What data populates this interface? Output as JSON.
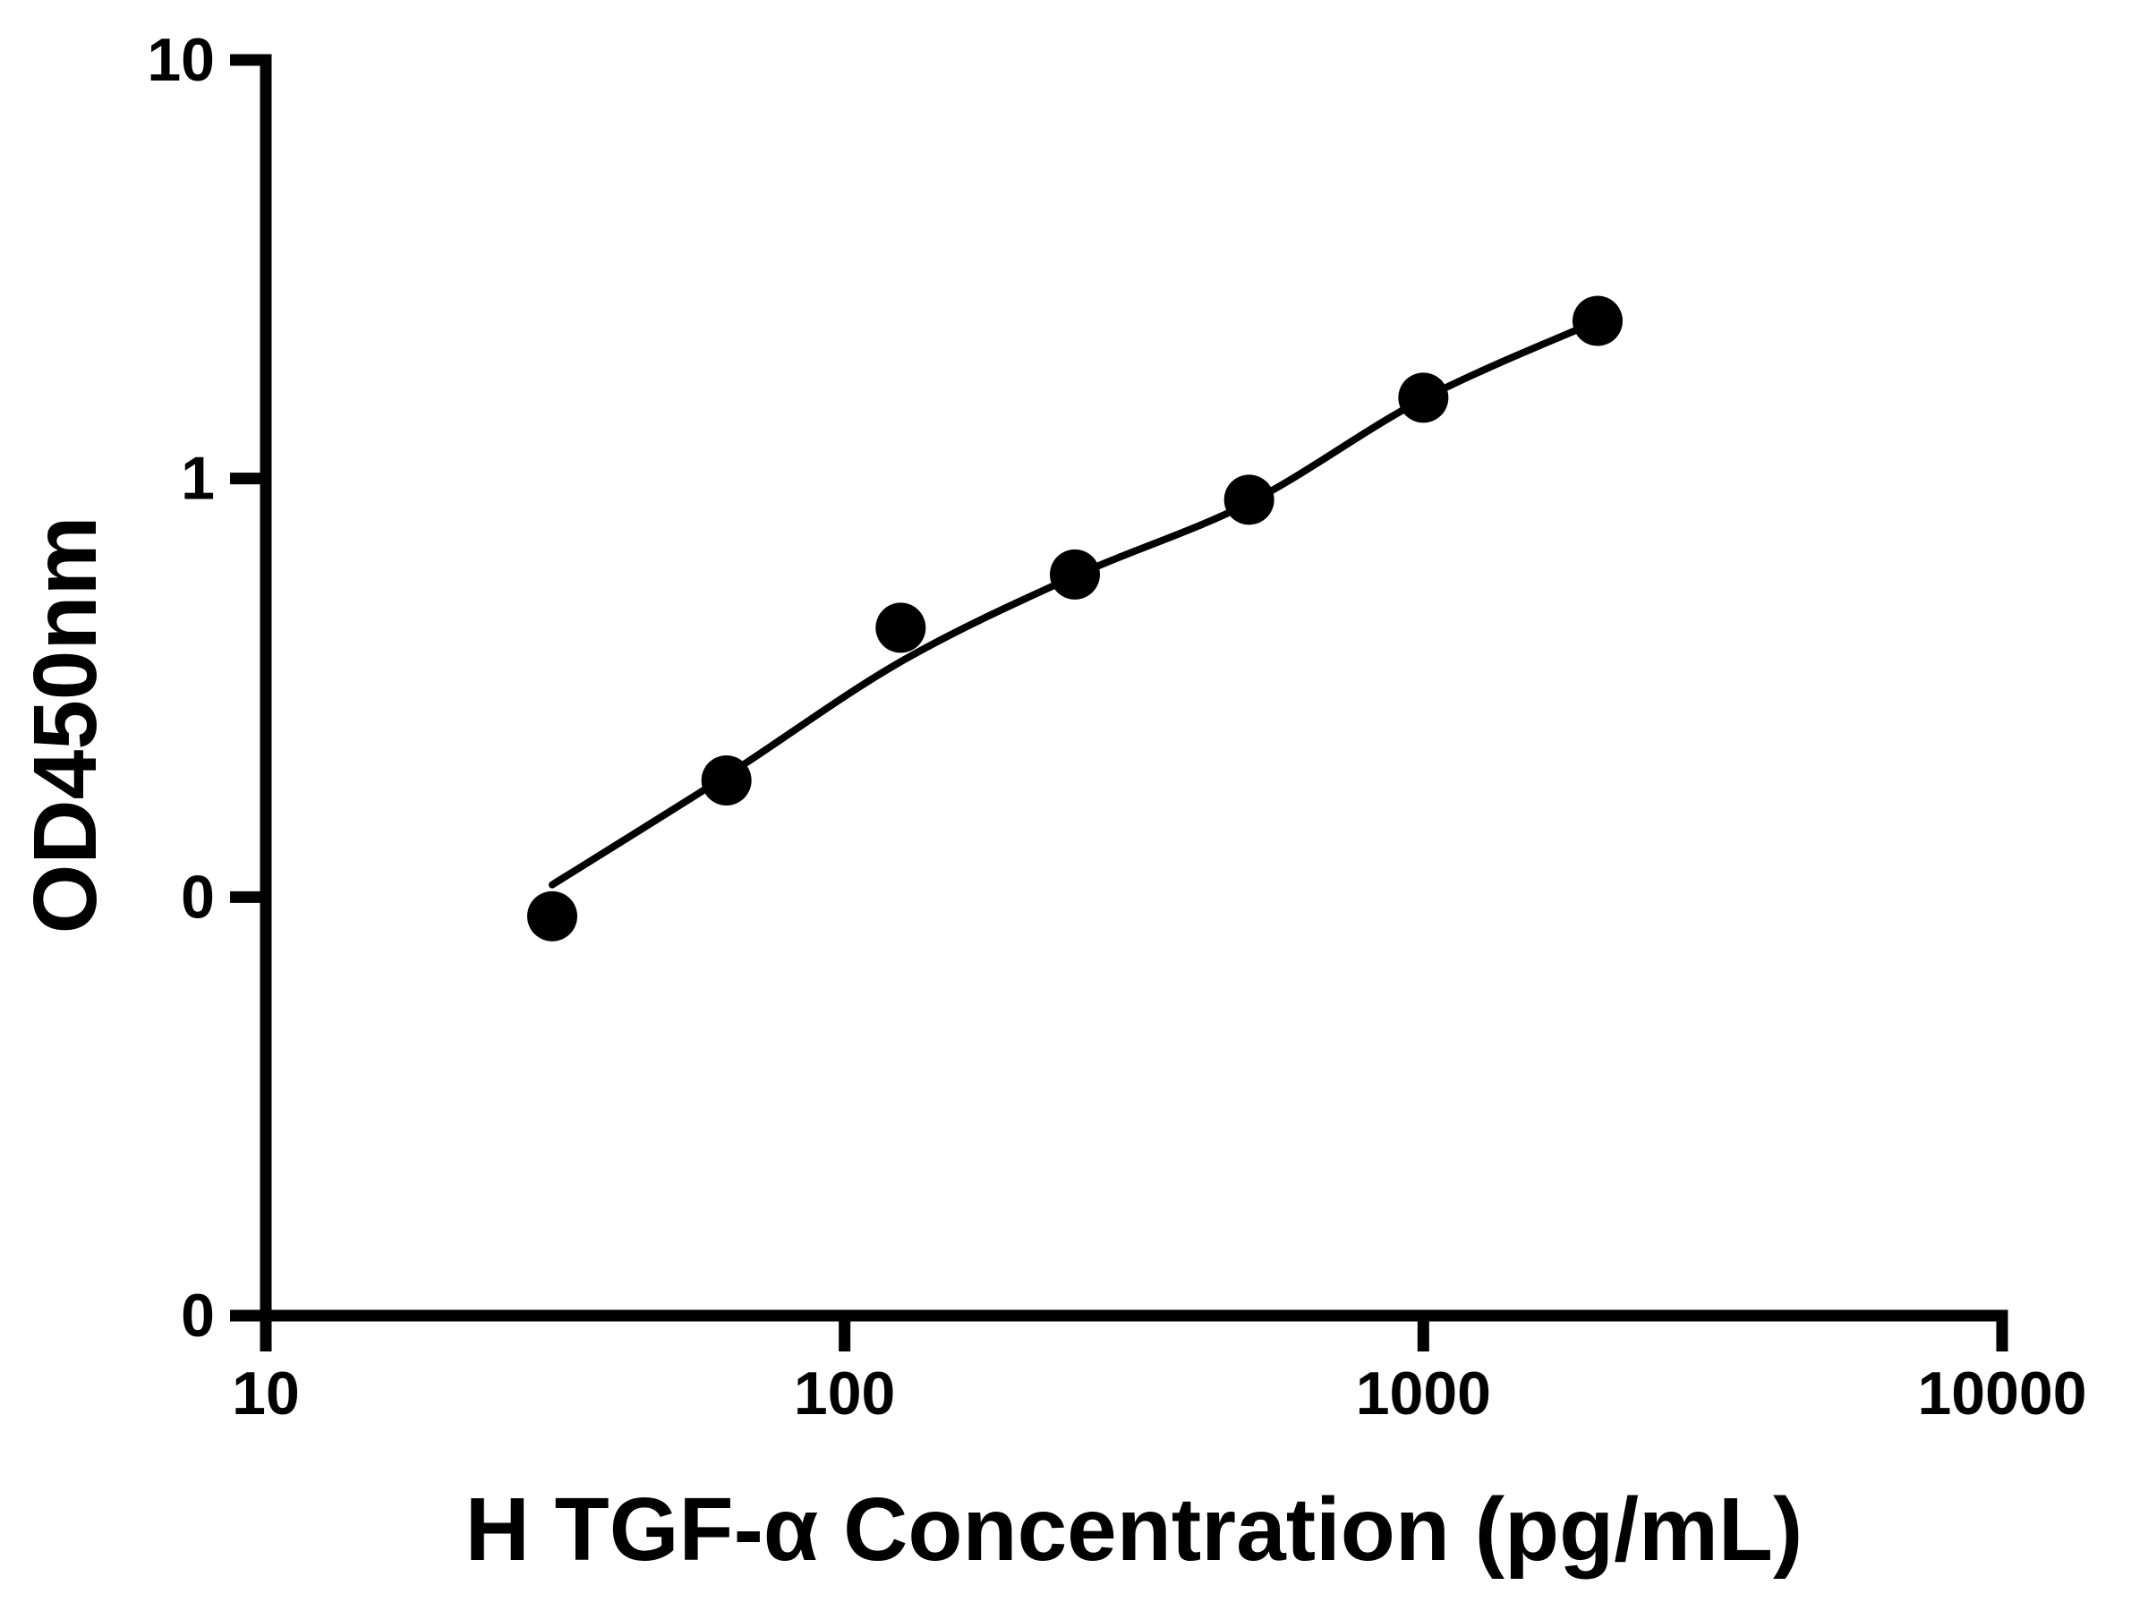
{
  "chart_data": {
    "type": "scatter",
    "title": "",
    "xlabel": "H TGF-α Concentration (pg/mL)",
    "ylabel": "OD450nm",
    "x_scale": "log10",
    "y_scale": "log10",
    "x_range": [
      10,
      10000
    ],
    "y_range": [
      0.01,
      10
    ],
    "grid": false,
    "legend": false,
    "axis_color": "#000000",
    "background_color": "#ffffff",
    "x_ticks": [
      {
        "value": 10,
        "label": "10"
      },
      {
        "value": 100,
        "label": "100"
      },
      {
        "value": 1000,
        "label": "1000"
      },
      {
        "value": 10000,
        "label": "10000"
      }
    ],
    "y_ticks": [
      {
        "value": 10,
        "label": "10"
      },
      {
        "value": 1,
        "label": "1"
      },
      {
        "value": 0.1,
        "label": "0"
      },
      {
        "value": 0.01,
        "label": "0"
      }
    ],
    "series": [
      {
        "name": "standard-curve-points",
        "marker": "circle",
        "color": "#000000",
        "points": [
          {
            "x": 31.25,
            "y": 0.09
          },
          {
            "x": 62.5,
            "y": 0.19
          },
          {
            "x": 125,
            "y": 0.44
          },
          {
            "x": 250,
            "y": 0.59
          },
          {
            "x": 500,
            "y": 0.89
          },
          {
            "x": 1000,
            "y": 1.56
          },
          {
            "x": 2000,
            "y": 2.38
          }
        ]
      }
    ],
    "fit_curve": {
      "name": "fitted-standard-curve",
      "color": "#000000",
      "points": [
        {
          "x": 31.25,
          "y": 0.107
        },
        {
          "x": 62.5,
          "y": 0.195
        },
        {
          "x": 125,
          "y": 0.365
        },
        {
          "x": 250,
          "y": 0.585
        },
        {
          "x": 500,
          "y": 0.875
        },
        {
          "x": 1000,
          "y": 1.55
        },
        {
          "x": 2000,
          "y": 2.38
        }
      ]
    }
  }
}
